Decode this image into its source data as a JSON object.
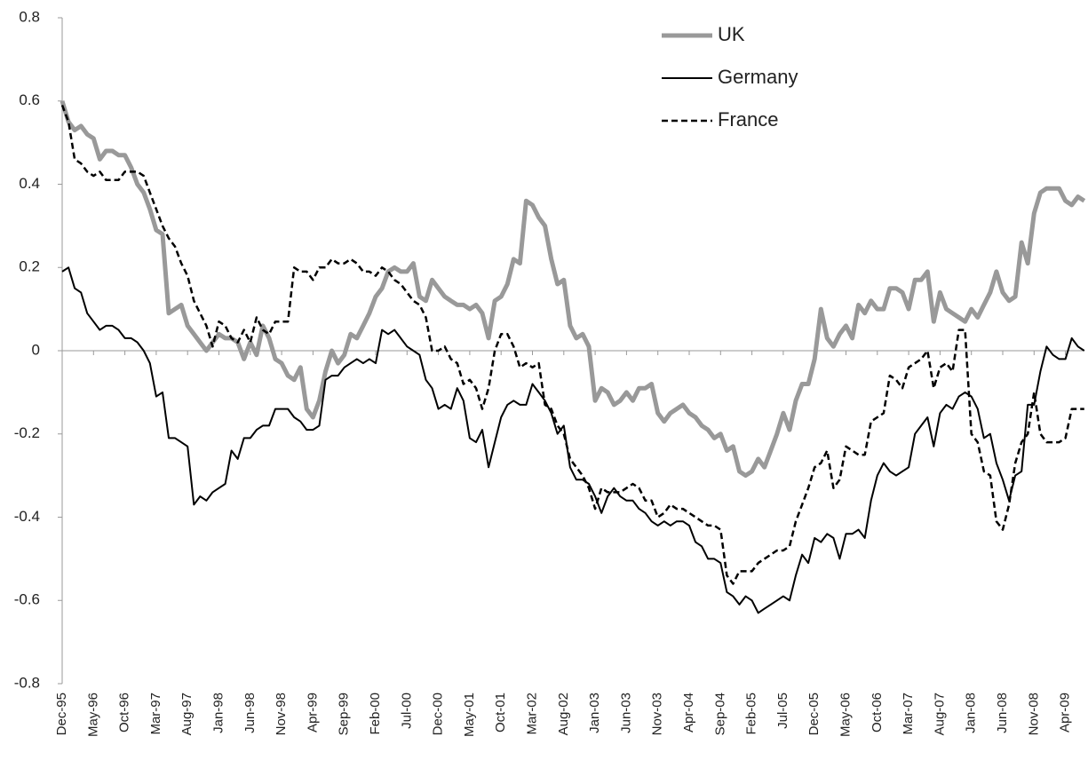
{
  "chart_data": {
    "type": "line",
    "categories": [
      "Dec-95",
      null,
      null,
      null,
      null,
      "May-96",
      null,
      null,
      null,
      null,
      "Oct-96",
      null,
      null,
      null,
      null,
      "Mar-97",
      null,
      null,
      null,
      null,
      "Aug-97",
      null,
      null,
      null,
      null,
      "Jan-98",
      null,
      null,
      null,
      null,
      "Jun-98",
      null,
      null,
      null,
      null,
      "Nov-98",
      null,
      null,
      null,
      null,
      "Apr-99",
      null,
      null,
      null,
      null,
      "Sep-99",
      null,
      null,
      null,
      null,
      "Feb-00",
      null,
      null,
      null,
      null,
      "Jul-00",
      null,
      null,
      null,
      null,
      "Dec-00",
      null,
      null,
      null,
      null,
      "May-01",
      null,
      null,
      null,
      null,
      "Oct-01",
      null,
      null,
      null,
      null,
      "Mar-02",
      null,
      null,
      null,
      null,
      "Aug-02",
      null,
      null,
      null,
      null,
      "Jan-03",
      null,
      null,
      null,
      null,
      "Jun-03",
      null,
      null,
      null,
      null,
      "Nov-03",
      null,
      null,
      null,
      null,
      "Apr-04",
      null,
      null,
      null,
      null,
      "Sep-04",
      null,
      null,
      null,
      null,
      "Feb-05",
      null,
      null,
      null,
      null,
      "Jul-05",
      null,
      null,
      null,
      null,
      "Dec-05",
      null,
      null,
      null,
      null,
      "May-06",
      null,
      null,
      null,
      null,
      "Oct-06",
      null,
      null,
      null,
      null,
      "Mar-07",
      null,
      null,
      null,
      null,
      "Aug-07",
      null,
      null,
      null,
      null,
      "Jan-08",
      null,
      null,
      null,
      null,
      "Jun-08",
      null,
      null,
      null,
      null,
      "Nov-08",
      null,
      null,
      null,
      null,
      "Apr-09",
      null,
      null,
      null
    ],
    "series": [
      {
        "name": "UK",
        "color": "#999999",
        "width": 5,
        "dash": false,
        "values": [
          0.6,
          0.55,
          0.53,
          0.54,
          0.52,
          0.51,
          0.46,
          0.48,
          0.48,
          0.47,
          0.47,
          0.44,
          0.4,
          0.38,
          0.34,
          0.29,
          0.28,
          0.09,
          0.1,
          0.11,
          0.06,
          0.04,
          0.02,
          0.0,
          0.02,
          0.04,
          0.03,
          0.03,
          0.02,
          -0.02,
          0.02,
          -0.01,
          0.06,
          0.03,
          -0.02,
          -0.03,
          -0.06,
          -0.07,
          -0.04,
          -0.14,
          -0.16,
          -0.12,
          -0.05,
          0.0,
          -0.03,
          -0.01,
          0.04,
          0.03,
          0.06,
          0.09,
          0.13,
          0.15,
          0.19,
          0.2,
          0.19,
          0.19,
          0.21,
          0.13,
          0.12,
          0.17,
          0.15,
          0.13,
          0.12,
          0.11,
          0.11,
          0.1,
          0.11,
          0.09,
          0.03,
          0.12,
          0.13,
          0.16,
          0.22,
          0.21,
          0.36,
          0.35,
          0.32,
          0.3,
          0.22,
          0.16,
          0.17,
          0.06,
          0.03,
          0.04,
          0.01,
          -0.12,
          -0.09,
          -0.1,
          -0.13,
          -0.12,
          -0.1,
          -0.12,
          -0.09,
          -0.09,
          -0.08,
          -0.15,
          -0.17,
          -0.15,
          -0.14,
          -0.13,
          -0.15,
          -0.16,
          -0.18,
          -0.19,
          -0.21,
          -0.2,
          -0.24,
          -0.23,
          -0.29,
          -0.3,
          -0.29,
          -0.26,
          -0.28,
          -0.24,
          -0.2,
          -0.15,
          -0.19,
          -0.12,
          -0.08,
          -0.08,
          -0.02,
          0.1,
          0.03,
          0.01,
          0.04,
          0.06,
          0.03,
          0.11,
          0.09,
          0.12,
          0.1,
          0.1,
          0.15,
          0.15,
          0.14,
          0.1,
          0.17,
          0.17,
          0.19,
          0.07,
          0.14,
          0.1,
          0.09,
          0.08,
          0.07,
          0.1,
          0.08,
          0.11,
          0.14,
          0.19,
          0.14,
          0.12,
          0.13,
          0.26,
          0.21,
          0.33,
          0.38,
          0.39,
          0.39,
          0.39,
          0.36,
          0.35,
          0.37,
          0.36
        ]
      },
      {
        "name": "Germany",
        "color": "#000000",
        "width": 2,
        "dash": false,
        "values": [
          0.19,
          0.2,
          0.15,
          0.14,
          0.09,
          0.07,
          0.05,
          0.06,
          0.06,
          0.05,
          0.03,
          0.03,
          0.02,
          0.0,
          -0.03,
          -0.11,
          -0.1,
          -0.21,
          -0.21,
          -0.22,
          -0.23,
          -0.37,
          -0.35,
          -0.36,
          -0.34,
          -0.33,
          -0.32,
          -0.24,
          -0.26,
          -0.21,
          -0.21,
          -0.19,
          -0.18,
          -0.18,
          -0.14,
          -0.14,
          -0.14,
          -0.16,
          -0.17,
          -0.19,
          -0.19,
          -0.18,
          -0.07,
          -0.06,
          -0.06,
          -0.04,
          -0.03,
          -0.02,
          -0.03,
          -0.02,
          -0.03,
          0.05,
          0.04,
          0.05,
          0.03,
          0.01,
          0.0,
          -0.01,
          -0.07,
          -0.09,
          -0.14,
          -0.13,
          -0.14,
          -0.09,
          -0.12,
          -0.21,
          -0.22,
          -0.19,
          -0.28,
          -0.22,
          -0.16,
          -0.13,
          -0.12,
          -0.13,
          -0.13,
          -0.08,
          -0.1,
          -0.12,
          -0.15,
          -0.2,
          -0.18,
          -0.28,
          -0.31,
          -0.31,
          -0.32,
          -0.35,
          -0.39,
          -0.35,
          -0.33,
          -0.35,
          -0.36,
          -0.36,
          -0.38,
          -0.39,
          -0.41,
          -0.42,
          -0.41,
          -0.42,
          -0.41,
          -0.41,
          -0.42,
          -0.46,
          -0.47,
          -0.5,
          -0.5,
          -0.51,
          -0.58,
          -0.59,
          -0.61,
          -0.59,
          -0.6,
          -0.63,
          -0.62,
          -0.61,
          -0.6,
          -0.59,
          -0.6,
          -0.54,
          -0.49,
          -0.51,
          -0.45,
          -0.46,
          -0.44,
          -0.45,
          -0.5,
          -0.44,
          -0.44,
          -0.43,
          -0.45,
          -0.36,
          -0.3,
          -0.27,
          -0.29,
          -0.3,
          -0.29,
          -0.28,
          -0.2,
          -0.18,
          -0.16,
          -0.23,
          -0.15,
          -0.13,
          -0.14,
          -0.11,
          -0.1,
          -0.11,
          -0.14,
          -0.21,
          -0.2,
          -0.27,
          -0.31,
          -0.36,
          -0.3,
          -0.29,
          -0.13,
          -0.13,
          -0.05,
          0.01,
          -0.01,
          -0.02,
          -0.02,
          0.03,
          0.01,
          0.0
        ]
      },
      {
        "name": "France",
        "color": "#000000",
        "width": 2.5,
        "dash": true,
        "values": [
          0.59,
          0.55,
          0.46,
          0.45,
          0.43,
          0.42,
          0.43,
          0.41,
          0.41,
          0.41,
          0.43,
          0.43,
          0.43,
          0.42,
          0.38,
          0.34,
          0.3,
          0.27,
          0.25,
          0.21,
          0.18,
          0.12,
          0.09,
          0.06,
          0.01,
          0.07,
          0.06,
          0.03,
          0.02,
          0.05,
          0.02,
          0.08,
          0.05,
          0.04,
          0.07,
          0.07,
          0.07,
          0.2,
          0.19,
          0.19,
          0.17,
          0.2,
          0.2,
          0.22,
          0.21,
          0.21,
          0.22,
          0.21,
          0.19,
          0.19,
          0.18,
          0.2,
          0.19,
          0.17,
          0.16,
          0.14,
          0.12,
          0.11,
          0.08,
          0.0,
          0.0,
          0.01,
          -0.02,
          -0.03,
          -0.08,
          -0.07,
          -0.09,
          -0.14,
          -0.09,
          0.0,
          0.04,
          0.04,
          0.01,
          -0.04,
          -0.03,
          -0.04,
          -0.03,
          -0.13,
          -0.14,
          -0.18,
          -0.2,
          -0.26,
          -0.28,
          -0.3,
          -0.33,
          -0.38,
          -0.33,
          -0.34,
          -0.34,
          -0.34,
          -0.33,
          -0.32,
          -0.33,
          -0.36,
          -0.36,
          -0.4,
          -0.39,
          -0.37,
          -0.38,
          -0.38,
          -0.39,
          -0.4,
          -0.41,
          -0.42,
          -0.42,
          -0.43,
          -0.54,
          -0.56,
          -0.53,
          -0.53,
          -0.53,
          -0.51,
          -0.5,
          -0.49,
          -0.48,
          -0.48,
          -0.47,
          -0.41,
          -0.37,
          -0.33,
          -0.28,
          -0.27,
          -0.24,
          -0.33,
          -0.31,
          -0.23,
          -0.24,
          -0.25,
          -0.25,
          -0.17,
          -0.16,
          -0.15,
          -0.06,
          -0.07,
          -0.09,
          -0.04,
          -0.03,
          -0.02,
          0.0,
          -0.09,
          -0.04,
          -0.03,
          -0.05,
          0.05,
          0.05,
          -0.2,
          -0.22,
          -0.29,
          -0.3,
          -0.41,
          -0.43,
          -0.37,
          -0.27,
          -0.22,
          -0.2,
          -0.1,
          -0.2,
          -0.22,
          -0.22,
          -0.22,
          -0.21,
          -0.14,
          -0.14,
          -0.14
        ]
      }
    ],
    "ylim": [
      -0.8,
      0.8
    ],
    "yticks": [
      -0.8,
      -0.6,
      -0.4,
      -0.2,
      0,
      0.2,
      0.4,
      0.6,
      0.8
    ],
    "grid": false,
    "legend": "upper-right"
  }
}
